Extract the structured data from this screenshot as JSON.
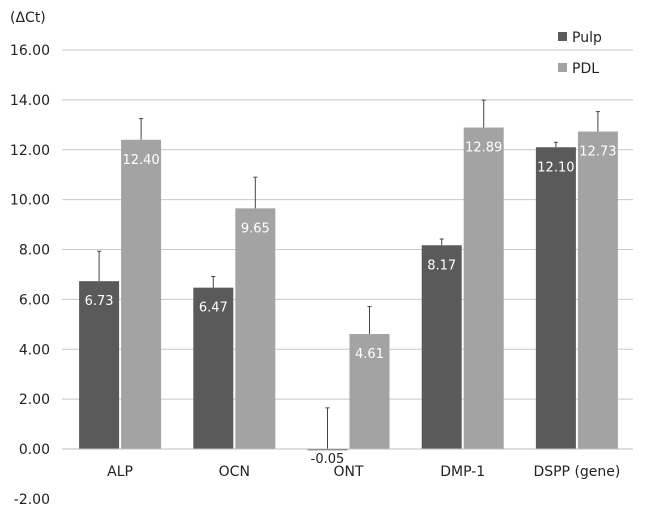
{
  "chart_data": {
    "type": "bar",
    "ylabel": "(ΔCt)",
    "ylim": [
      -2,
      16
    ],
    "yticks": [
      "16.00",
      "14.00",
      "12.00",
      "10.00",
      "8.00",
      "6.00",
      "4.00",
      "2.00",
      "0.00",
      "-2.00"
    ],
    "ytick_values": [
      16,
      14,
      12,
      10,
      8,
      6,
      4,
      2,
      0,
      -2
    ],
    "categories": [
      "ALP",
      "OCN",
      "ONT",
      "DMP-1",
      "DSPP (gene)"
    ],
    "grid": true,
    "legend_position": "top-right",
    "series": [
      {
        "name": "Pulp",
        "color": "#5a5a5a",
        "values": [
          6.73,
          6.47,
          -0.05,
          8.17,
          12.1
        ],
        "labels": [
          "6.73",
          "6.47",
          "-0.05",
          "8.17",
          "12.10"
        ],
        "errors": [
          1.2,
          0.45,
          1.65,
          0.25,
          0.2
        ]
      },
      {
        "name": "PDL",
        "color": "#a3a3a3",
        "values": [
          12.4,
          9.65,
          4.61,
          12.89,
          12.73
        ],
        "labels": [
          "12.40",
          "9.65",
          "4.61",
          "12.89",
          "12.73"
        ],
        "errors": [
          0.85,
          1.25,
          1.1,
          1.1,
          0.8
        ]
      }
    ]
  }
}
